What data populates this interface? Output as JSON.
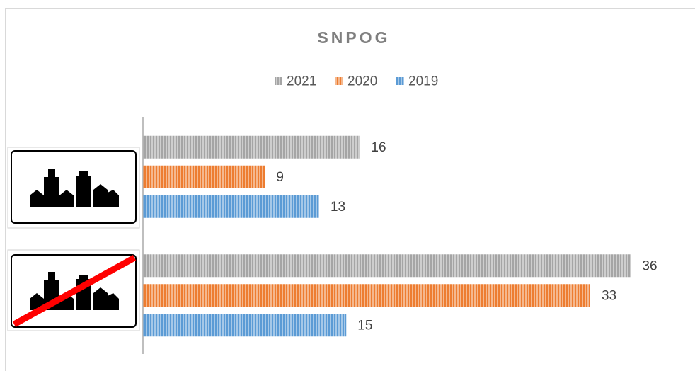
{
  "chart_data": {
    "type": "hbar",
    "title": "SNPOG",
    "categories": [
      null,
      null
    ],
    "series": [
      {
        "name": "2021",
        "color": "#a5a5a5",
        "values": [
          16,
          36
        ]
      },
      {
        "name": "2020",
        "color": "#ed7d31",
        "values": [
          9,
          33
        ]
      },
      {
        "name": "2019",
        "color": "#5b9bd5",
        "values": [
          13,
          15
        ]
      }
    ],
    "xlim": [
      0,
      40
    ]
  }
}
